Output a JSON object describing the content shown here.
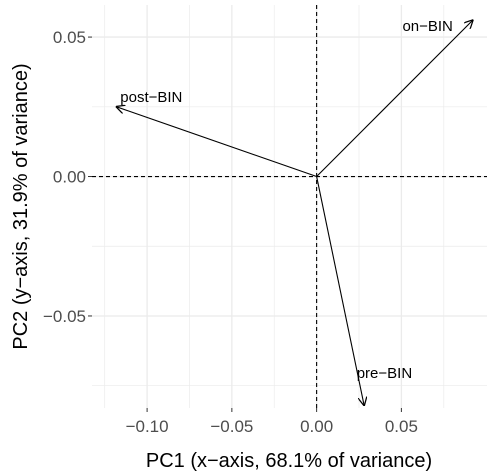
{
  "chart_data": {
    "type": "scatter",
    "subtype": "biplot-vectors",
    "xlabel": "PC1 (x−axis, 68.1% of variance)",
    "ylabel": "PC2 (y−axis, 31.9% of variance)",
    "xlim": [
      -0.1325,
      0.1005
    ],
    "ylim": [
      -0.083,
      0.0615
    ],
    "x_ticks": [
      {
        "value": -0.1,
        "label": "−0.10"
      },
      {
        "value": -0.05,
        "label": "−0.05"
      },
      {
        "value": 0.0,
        "label": "0.00"
      },
      {
        "value": 0.05,
        "label": "0.05"
      }
    ],
    "y_ticks": [
      {
        "value": -0.05,
        "label": "−0.05"
      },
      {
        "value": 0.0,
        "label": "0.00"
      },
      {
        "value": 0.05,
        "label": "0.05"
      }
    ],
    "grid": true,
    "reference_lines": {
      "x": 0,
      "y": 0,
      "style": "dashed"
    },
    "vectors": [
      {
        "label": "on−BIN",
        "x": 0.092,
        "y": 0.056,
        "label_x": 0.0655,
        "label_y": 0.054
      },
      {
        "label": "post−BIN",
        "x": -0.118,
        "y": 0.025,
        "label_x": -0.0975,
        "label_y": 0.0285
      },
      {
        "label": "pre−BIN",
        "x": 0.028,
        "y": -0.082,
        "label_x": 0.04,
        "label_y": -0.0705
      }
    ],
    "colors": {
      "background": "#ffffff",
      "grid": "#ebebeb",
      "vectors": "#000000"
    }
  }
}
